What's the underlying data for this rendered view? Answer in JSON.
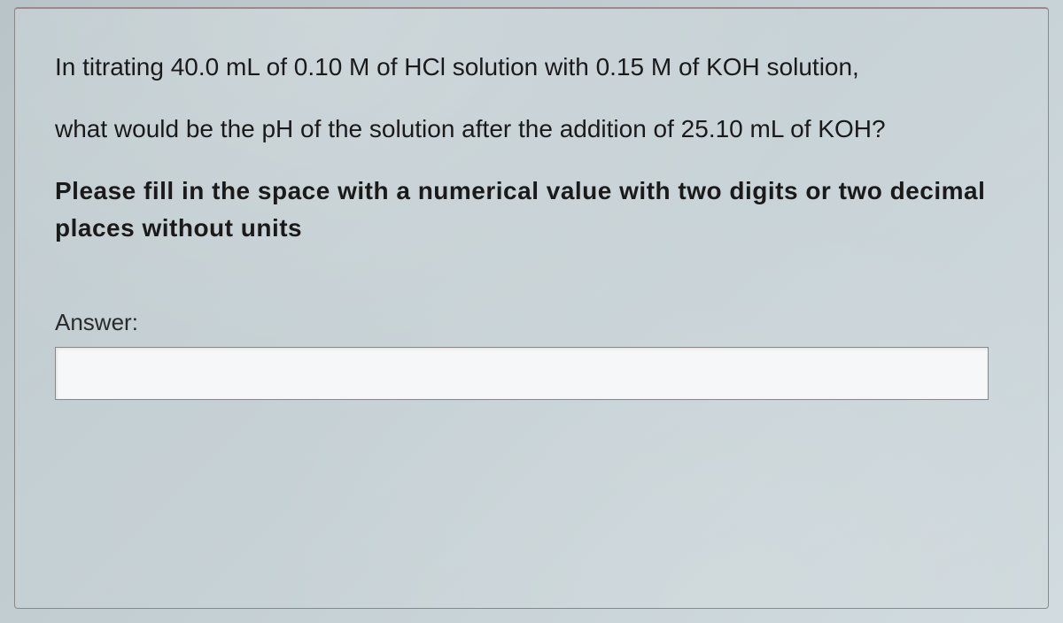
{
  "question": {
    "paragraph1": "In titrating 40.0 mL of 0.10 M of HCl solution with 0.15 M of KOH solution,",
    "paragraph2": "what would be the pH of the solution after the addition of 25.10 mL of KOH?",
    "instruction": "Please fill in the space with a numerical value with two digits or two decimal places without units"
  },
  "answer": {
    "label": "Answer:",
    "value": "",
    "placeholder": ""
  },
  "colors": {
    "text": "#1a1a1a",
    "border": "#888888",
    "background_start": "#b8c4c8",
    "background_end": "#d2dce0",
    "input_bg": "#f5f7f8"
  },
  "typography": {
    "body_fontsize": 28,
    "instruction_fontsize": 28,
    "instruction_weight": 600,
    "label_fontsize": 26
  }
}
